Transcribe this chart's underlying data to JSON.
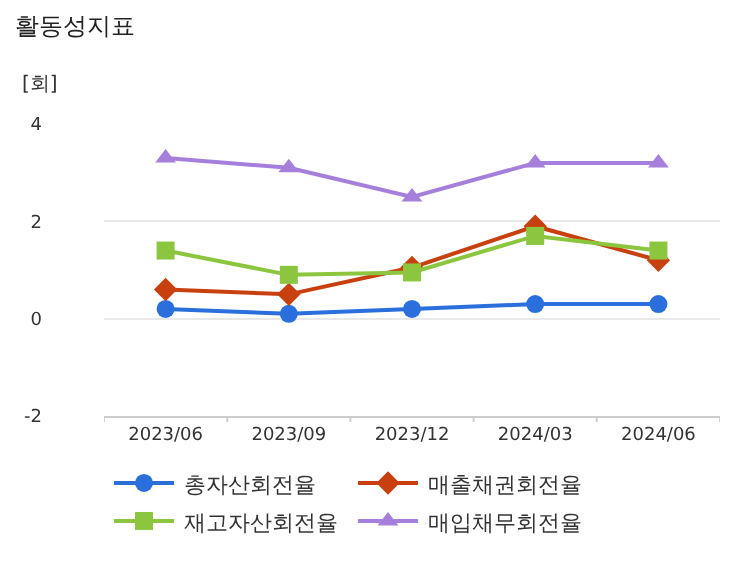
{
  "chart_data": {
    "type": "line",
    "title": "활동성지표",
    "ylabel": "[회]",
    "categories": [
      "2023/06",
      "2023/09",
      "2023/12",
      "2024/03",
      "2024/06"
    ],
    "series": [
      {
        "name": "총자산회전율",
        "color": "#2a6fdb",
        "marker": "circle",
        "values": [
          0.2,
          0.1,
          0.2,
          0.3,
          0.3
        ]
      },
      {
        "name": "매출채권회전율",
        "color": "#c8400e",
        "marker": "diamond",
        "values": [
          0.6,
          0.5,
          1.05,
          1.9,
          1.2
        ]
      },
      {
        "name": "재고자산회전율",
        "color": "#8cc63f",
        "marker": "square",
        "values": [
          1.4,
          0.9,
          0.95,
          1.7,
          1.4
        ]
      },
      {
        "name": "매입채무회전율",
        "color": "#a67fdc",
        "marker": "triangle",
        "values": [
          3.3,
          3.1,
          2.5,
          3.2,
          3.2
        ]
      }
    ],
    "ylim": [
      -2,
      4
    ],
    "yticks": [
      -2,
      0,
      2,
      4
    ],
    "grid": "y",
    "legend": "bottom"
  }
}
